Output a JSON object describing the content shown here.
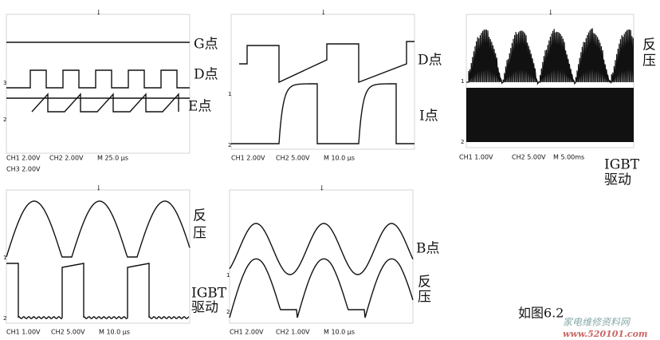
{
  "panels": [
    {
      "labels": [
        "G点",
        "D点",
        "E点"
      ],
      "markers": [
        "3",
        "2"
      ],
      "scale": [
        "CH1 2.00V",
        "CH2 2.00V",
        "M 25.0 μs",
        "CH3 2.00V"
      ]
    },
    {
      "labels": [
        "D点",
        "I点"
      ],
      "markers": [
        "1",
        "2"
      ],
      "scale": [
        "CH1 2.00V",
        "CH2 5.00V",
        "M 10.0 μs"
      ]
    },
    {
      "labels": [
        "反",
        "压",
        "IGBT",
        "驱动"
      ],
      "markers": [
        "1",
        "2"
      ],
      "scale": [
        "CH1 1.00V",
        "CH2 5.00V",
        "M 5.00ms"
      ]
    },
    {
      "labels": [
        "反",
        "压",
        "IGBT",
        "驱动"
      ],
      "markers": [
        "1",
        "2"
      ],
      "scale": [
        "CH1 1.00V",
        "CH2 5.00V",
        "M 10.0 μs"
      ]
    },
    {
      "labels": [
        "B点",
        "反",
        "压"
      ],
      "markers": [
        "1",
        "2"
      ],
      "scale": [
        "CH1 2.00V",
        "CH2 1.00V",
        "M 10.0 μs"
      ]
    }
  ],
  "caption": "如图6.2",
  "watermark": {
    "name": "家电维修资料网",
    "url": "www.520101.com"
  }
}
